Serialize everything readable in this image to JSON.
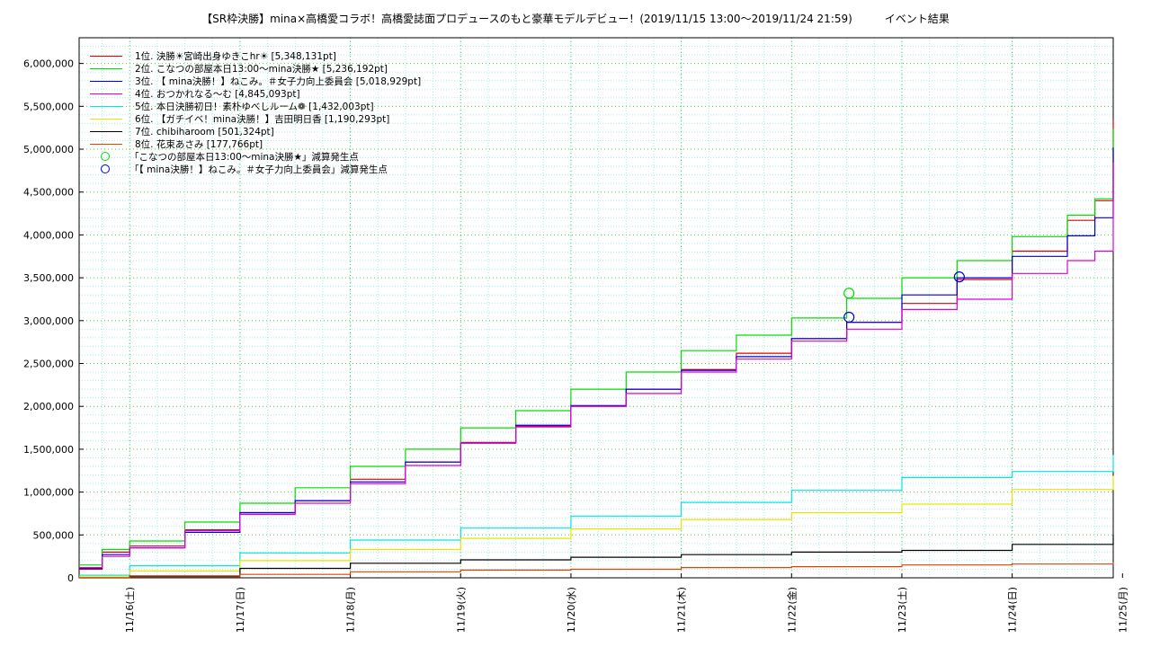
{
  "chart_data": {
    "type": "line",
    "title": "【SR枠決勝】mina×高橋愛コラボ！高橋愛誌面プロデュースのもと豪華モデルデビュー！(2019/11/15 13:00〜2019/11/24 21:59)　　　イベント結果",
    "xlabel": "",
    "ylabel": "",
    "x_range": [
      "2019/11/15 13:00",
      "2019/11/24 21:59"
    ],
    "ylim": [
      0,
      6300000
    ],
    "y_ticks": [
      0,
      500000,
      1000000,
      1500000,
      2000000,
      2500000,
      3000000,
      3500000,
      4000000,
      4500000,
      5000000,
      5500000,
      6000000
    ],
    "y_tick_labels": [
      "0",
      "500,000",
      "1,000,000",
      "1,500,000",
      "2,000,000",
      "2,500,000",
      "3,000,000",
      "3,500,000",
      "4,000,000",
      "4,500,000",
      "5,000,000",
      "5,500,000",
      "6,000,000"
    ],
    "x_ticks": [
      "2019-11-16",
      "2019-11-17",
      "2019-11-18",
      "2019-11-19",
      "2019-11-20",
      "2019-11-21",
      "2019-11-22",
      "2019-11-23",
      "2019-11-24",
      "2019-11-25"
    ],
    "x_tick_labels": [
      "11/16(土)",
      "11/17(日)",
      "11/18(月)",
      "11/19(火)",
      "11/20(水)",
      "11/21(木)",
      "11/22(金)",
      "11/23(土)",
      "11/24(日)",
      "11/25(月)"
    ],
    "grid": true,
    "legend_position": "top-left",
    "series": [
      {
        "name": "1位. 決勝☀宮崎出身ゆきこhr☀ [5,348,131pt]",
        "color": "#dd0000",
        "x": [
          "2019-11-15 13:00",
          "2019-11-15 18:00",
          "2019-11-16 00:00",
          "2019-11-16 12:00",
          "2019-11-17 00:00",
          "2019-11-17 12:00",
          "2019-11-18 00:00",
          "2019-11-18 12:00",
          "2019-11-19 00:00",
          "2019-11-19 12:00",
          "2019-11-20 00:00",
          "2019-11-20 12:00",
          "2019-11-21 00:00",
          "2019-11-21 12:00",
          "2019-11-22 00:00",
          "2019-11-22 12:00",
          "2019-11-23 00:00",
          "2019-11-23 12:00",
          "2019-11-24 00:00",
          "2019-11-24 12:00",
          "2019-11-24 18:00",
          "2019-11-24 21:59"
        ],
        "values": [
          100000,
          300000,
          370000,
          560000,
          760000,
          900000,
          1150000,
          1350000,
          1580000,
          1770000,
          2000000,
          2200000,
          2430000,
          2620000,
          2790000,
          2980000,
          3200000,
          3480000,
          3810000,
          4170000,
          4400000,
          5348131
        ]
      },
      {
        "name": "2位. こなつの部屋本日13:00〜mina決勝★ [5,236,192pt]",
        "color": "#00dd00",
        "x": [
          "2019-11-15 13:00",
          "2019-11-15 18:00",
          "2019-11-16 00:00",
          "2019-11-16 12:00",
          "2019-11-17 00:00",
          "2019-11-17 12:00",
          "2019-11-18 00:00",
          "2019-11-18 12:00",
          "2019-11-19 00:00",
          "2019-11-19 12:00",
          "2019-11-20 00:00",
          "2019-11-20 12:00",
          "2019-11-21 00:00",
          "2019-11-21 12:00",
          "2019-11-22 00:00",
          "2019-11-22 12:00",
          "2019-11-23 00:00",
          "2019-11-23 12:00",
          "2019-11-24 00:00",
          "2019-11-24 12:00",
          "2019-11-24 18:00",
          "2019-11-24 21:59"
        ],
        "values": [
          150000,
          330000,
          430000,
          650000,
          870000,
          1050000,
          1300000,
          1500000,
          1750000,
          1950000,
          2200000,
          2400000,
          2650000,
          2830000,
          3030000,
          3260000,
          3500000,
          3700000,
          3980000,
          4230000,
          4420000,
          5236192
        ]
      },
      {
        "name": "3位. 【 mina決勝！】ねこみ。＃女子力向上委員会 [5,018,929pt]",
        "color": "#0000dd",
        "x": [
          "2019-11-15 13:00",
          "2019-11-15 18:00",
          "2019-11-16 00:00",
          "2019-11-16 12:00",
          "2019-11-17 00:00",
          "2019-11-17 12:00",
          "2019-11-18 00:00",
          "2019-11-18 12:00",
          "2019-11-19 00:00",
          "2019-11-19 12:00",
          "2019-11-20 00:00",
          "2019-11-20 12:00",
          "2019-11-21 00:00",
          "2019-11-21 12:00",
          "2019-11-22 00:00",
          "2019-11-22 12:00",
          "2019-11-23 00:00",
          "2019-11-23 12:00",
          "2019-11-24 00:00",
          "2019-11-24 12:00",
          "2019-11-24 18:00",
          "2019-11-24 21:59"
        ],
        "values": [
          110000,
          270000,
          350000,
          530000,
          760000,
          900000,
          1120000,
          1350000,
          1570000,
          1780000,
          2010000,
          2200000,
          2420000,
          2580000,
          2790000,
          2980000,
          3300000,
          3500000,
          3750000,
          3990000,
          4200000,
          5018929
        ]
      },
      {
        "name": "4位. おつかれなる〜む [4,845,093pt]",
        "color": "#dd00dd",
        "x": [
          "2019-11-15 13:00",
          "2019-11-15 18:00",
          "2019-11-16 00:00",
          "2019-11-16 12:00",
          "2019-11-17 00:00",
          "2019-11-17 12:00",
          "2019-11-18 00:00",
          "2019-11-18 12:00",
          "2019-11-19 00:00",
          "2019-11-19 12:00",
          "2019-11-20 00:00",
          "2019-11-20 12:00",
          "2019-11-21 00:00",
          "2019-11-21 12:00",
          "2019-11-22 00:00",
          "2019-11-22 12:00",
          "2019-11-23 00:00",
          "2019-11-23 12:00",
          "2019-11-24 00:00",
          "2019-11-24 12:00",
          "2019-11-24 18:00",
          "2019-11-24 21:59"
        ],
        "values": [
          120000,
          250000,
          350000,
          550000,
          740000,
          870000,
          1100000,
          1310000,
          1570000,
          1760000,
          2000000,
          2150000,
          2400000,
          2550000,
          2760000,
          2900000,
          3130000,
          3250000,
          3550000,
          3700000,
          3810000,
          4845093
        ]
      },
      {
        "name": "5位. 本日決勝初日！素朴ゆべしルーム❁ [1,432,003pt]",
        "color": "#00e6e6",
        "x": [
          "2019-11-15 13:00",
          "2019-11-16 00:00",
          "2019-11-17 00:00",
          "2019-11-18 00:00",
          "2019-11-19 00:00",
          "2019-11-20 00:00",
          "2019-11-21 00:00",
          "2019-11-22 00:00",
          "2019-11-23 00:00",
          "2019-11-24 00:00",
          "2019-11-24 21:59"
        ],
        "values": [
          30000,
          140000,
          290000,
          440000,
          580000,
          720000,
          880000,
          1020000,
          1170000,
          1240000,
          1432003
        ]
      },
      {
        "name": "6位. 【ガチイベ！mina決勝！】吉田明日香 [1,190,293pt]",
        "color": "#e6e600",
        "x": [
          "2019-11-15 13:00",
          "2019-11-16 00:00",
          "2019-11-17 00:00",
          "2019-11-18 00:00",
          "2019-11-19 00:00",
          "2019-11-20 00:00",
          "2019-11-21 00:00",
          "2019-11-22 00:00",
          "2019-11-23 00:00",
          "2019-11-24 00:00",
          "2019-11-24 21:59"
        ],
        "values": [
          10000,
          80000,
          200000,
          330000,
          460000,
          570000,
          680000,
          760000,
          860000,
          1030000,
          1190293
        ]
      },
      {
        "name": "7位. chibiharoom [501,324pt]",
        "color": "#000000",
        "x": [
          "2019-11-15 13:00",
          "2019-11-16 00:00",
          "2019-11-17 00:00",
          "2019-11-18 00:00",
          "2019-11-19 00:00",
          "2019-11-20 00:00",
          "2019-11-21 00:00",
          "2019-11-22 00:00",
          "2019-11-23 00:00",
          "2019-11-24 00:00",
          "2019-11-24 21:59"
        ],
        "values": [
          0,
          20000,
          110000,
          170000,
          210000,
          240000,
          270000,
          300000,
          320000,
          390000,
          501324
        ]
      },
      {
        "name": "8位. 花束あさみ [177,766pt]",
        "color": "#dd4400",
        "x": [
          "2019-11-15 13:00",
          "2019-11-16 00:00",
          "2019-11-17 00:00",
          "2019-11-18 00:00",
          "2019-11-19 00:00",
          "2019-11-20 00:00",
          "2019-11-21 00:00",
          "2019-11-22 00:00",
          "2019-11-23 00:00",
          "2019-11-24 00:00",
          "2019-11-24 21:59"
        ],
        "values": [
          0,
          10000,
          40000,
          70000,
          90000,
          100000,
          120000,
          130000,
          150000,
          160000,
          177766
        ]
      }
    ],
    "markers": [
      {
        "name": "「こなつの部屋本日13:00〜mina決勝★」減算発生点",
        "color": "#00dd00",
        "points": [
          {
            "x": "2019-11-22 12:30",
            "y": 3320000
          }
        ]
      },
      {
        "name": "「【 mina決勝！】ねこみ。＃女子力向上委員会」減算発生点",
        "color": "#0000dd",
        "points": [
          {
            "x": "2019-11-22 12:30",
            "y": 3040000
          },
          {
            "x": "2019-11-23 12:30",
            "y": 3510000
          }
        ]
      }
    ]
  }
}
